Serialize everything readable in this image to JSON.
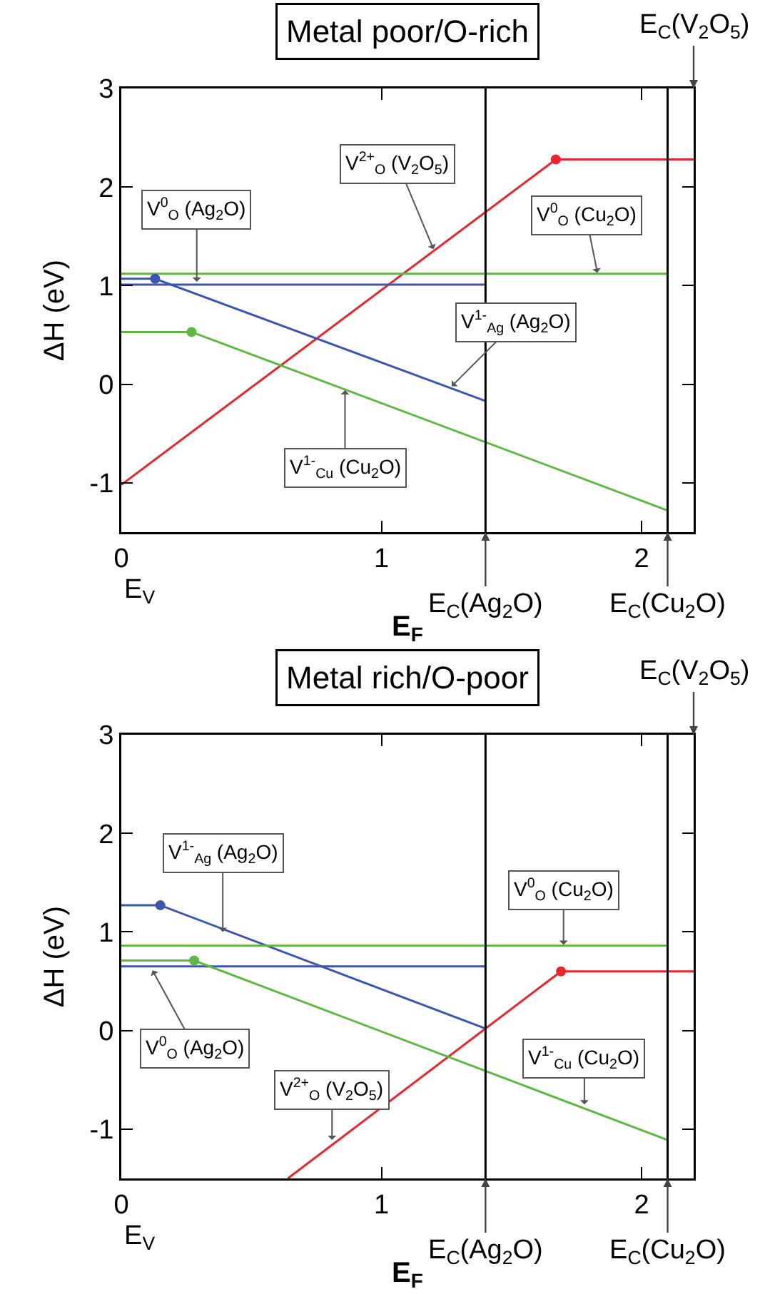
{
  "chart_data": [
    {
      "type": "line",
      "title": "Metal poor/O-rich",
      "xlabel": "E$_{F}$",
      "ylabel": "ΔH (eV)",
      "xlim": [
        0,
        2.2
      ],
      "ylim": [
        -1.5,
        3
      ],
      "xticks": [
        0,
        1,
        2
      ],
      "yticks": [
        -1,
        0,
        1,
        2,
        3
      ],
      "grid": false,
      "marker": "none",
      "line_style": "solid",
      "series": [
        {
          "color": "#e8262e",
          "x": [
            0,
            1.67,
            2.2
          ],
          "values": [
            -1.02,
            2.28,
            2.28
          ]
        },
        {
          "color": "#3a56b0",
          "x": [
            0,
            0.13,
            1.4
          ],
          "values": [
            1.07,
            1.07,
            -0.17
          ]
        },
        {
          "color": "#3a56b0",
          "x": [
            0,
            1.4
          ],
          "values": [
            1.01,
            1.01
          ]
        },
        {
          "color": "#5cb840",
          "x": [
            0,
            2.1
          ],
          "values": [
            1.12,
            1.12
          ]
        },
        {
          "color": "#5cb840",
          "x": [
            0,
            0.27,
            2.1
          ],
          "values": [
            0.53,
            0.53,
            -1.28
          ]
        },
        {
          "type": "scatter",
          "marker": "circle",
          "color": "#e8262e",
          "x": [
            1.67
          ],
          "values": [
            2.28
          ]
        },
        {
          "type": "scatter",
          "marker": "circle",
          "color": "#3a56b0",
          "x": [
            0.13
          ],
          "values": [
            1.07
          ]
        },
        {
          "type": "scatter",
          "marker": "circle",
          "color": "#5cb840",
          "x": [
            0.27
          ],
          "values": [
            0.53
          ]
        }
      ],
      "ref_lines": [
        {
          "axis": "x",
          "value": 1.4,
          "label": "E$_{C}$(Ag$_{2}$O)",
          "color": "#000000"
        },
        {
          "axis": "x",
          "value": 2.1,
          "label": "E$_{C}$(Cu$_{2}$O)",
          "color": "#000000"
        }
      ],
      "annotations": [
        "E$_{C}$(V$_{2}$O$_{5}$)",
        "E$_{V}$",
        {
          "text": "V$^{0}$$_{O}$ (Ag$_{2}$O)",
          "x": 0.29,
          "y": 1.04
        },
        {
          "text": "V$^{2+}$$_{O}$ (V$_{2}$O$_{5}$)",
          "x": 1.2,
          "y": 1.37
        },
        {
          "text": "V$^{0}$$_{O}$ (Cu$_{2}$O)",
          "x": 1.83,
          "y": 1.13
        },
        {
          "text": "V$^{1-}$$_{Ag}$ (Ag$_{2}$O)",
          "x": 1.27,
          "y": -0.02
        },
        {
          "text": "V$^{1-}$$_{Cu}$ (Cu$_{2}$O)",
          "x": 0.86,
          "y": -0.06
        }
      ]
    },
    {
      "type": "line",
      "title": "Metal rich/O-poor",
      "xlabel": "E$_{F}$",
      "ylabel": "ΔH (eV)",
      "xlim": [
        0,
        2.2
      ],
      "ylim": [
        -1.5,
        3
      ],
      "xticks": [
        0,
        1,
        2
      ],
      "yticks": [
        -1,
        0,
        1,
        2,
        3
      ],
      "grid": false,
      "marker": "none",
      "line_style": "solid",
      "series": [
        {
          "color": "#e8262e",
          "x": [
            0.64,
            1.69,
            2.2
          ],
          "values": [
            -1.5,
            0.6,
            0.6
          ]
        },
        {
          "color": "#3a56b0",
          "x": [
            0,
            0.15,
            1.4
          ],
          "values": [
            1.27,
            1.27,
            0.02
          ]
        },
        {
          "color": "#3a56b0",
          "x": [
            0,
            1.4
          ],
          "values": [
            0.65,
            0.65
          ]
        },
        {
          "color": "#5cb840",
          "x": [
            0,
            2.1
          ],
          "values": [
            0.86,
            0.86
          ]
        },
        {
          "color": "#5cb840",
          "x": [
            0,
            0.28,
            2.1
          ],
          "values": [
            0.71,
            0.71,
            -1.11
          ]
        },
        {
          "type": "scatter",
          "marker": "circle",
          "color": "#e8262e",
          "x": [
            1.69
          ],
          "values": [
            0.6
          ]
        },
        {
          "type": "scatter",
          "marker": "circle",
          "color": "#3a56b0",
          "x": [
            0.15
          ],
          "values": [
            1.27
          ]
        },
        {
          "type": "scatter",
          "marker": "circle",
          "color": "#5cb840",
          "x": [
            0.28
          ],
          "values": [
            0.71
          ]
        }
      ],
      "ref_lines": [
        {
          "axis": "x",
          "value": 1.4,
          "label": "E$_{C}$(Ag$_{2}$O)",
          "color": "#000000"
        },
        {
          "axis": "x",
          "value": 2.1,
          "label": "E$_{C}$(Cu$_{2}$O)",
          "color": "#000000"
        }
      ],
      "annotations": [
        "E$_{C}$(V$_{2}$O$_{5}$)",
        "E$_{V}$",
        {
          "text": "V$^{1-}$$_{Ag}$ (Ag$_{2}$O)",
          "x": 0.39,
          "y": 1.0
        },
        {
          "text": "V$^{0}$$_{O}$ (Ag$_{2}$O)",
          "x": 0.12,
          "y": 0.61
        },
        {
          "text": "V$^{2+}$$_{O}$ (V$_{2}$O$_{5}$)",
          "x": 0.81,
          "y": -1.11
        },
        {
          "text": "V$^{0}$$_{O}$ (Cu$_{2}$O)",
          "x": 1.7,
          "y": 0.87
        },
        {
          "text": "V$^{1-}$$_{Cu}$ (Cu$_{2}$O)",
          "x": 1.78,
          "y": -0.75
        }
      ]
    }
  ]
}
